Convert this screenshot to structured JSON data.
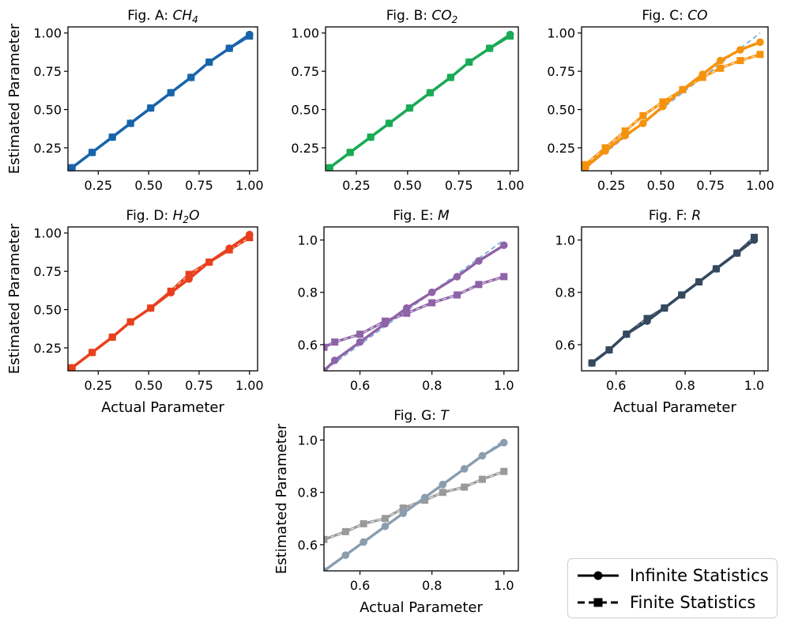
{
  "figure": {
    "ylabel": "Estimated Parameter",
    "xlabel": "Actual Parameter",
    "legend": {
      "infinite_label": "Infinite Statistics",
      "finite_label": "Finite Statistics"
    }
  },
  "chart_data": [
    {
      "id": "A",
      "type": "line",
      "title_prefix": "Fig. A: ",
      "title_sym": "CH",
      "title_sub": "4",
      "color": "#1764ab",
      "xlim": [
        0.1,
        1.04
      ],
      "ylim": [
        0.1,
        1.04
      ],
      "xticks": [
        "0.25",
        "0.50",
        "0.75",
        "1.00"
      ],
      "xtick_vals": [
        0.25,
        0.5,
        0.75,
        1.0
      ],
      "yticks": [
        "0.25",
        "0.50",
        "0.75",
        "1.00"
      ],
      "ytick_vals": [
        0.25,
        0.5,
        0.75,
        1.0
      ],
      "series": [
        {
          "name": "Infinite Statistics",
          "x": [
            0.12,
            0.22,
            0.32,
            0.41,
            0.51,
            0.61,
            0.71,
            0.8,
            0.9,
            1.0
          ],
          "y": [
            0.12,
            0.22,
            0.32,
            0.41,
            0.51,
            0.61,
            0.71,
            0.81,
            0.9,
            0.99
          ]
        },
        {
          "name": "Finite Statistics",
          "x": [
            0.12,
            0.22,
            0.32,
            0.41,
            0.51,
            0.61,
            0.71,
            0.8,
            0.9,
            1.0
          ],
          "y": [
            0.12,
            0.22,
            0.32,
            0.41,
            0.51,
            0.61,
            0.71,
            0.81,
            0.9,
            0.98
          ]
        }
      ]
    },
    {
      "id": "B",
      "type": "line",
      "title_prefix": "Fig. B: ",
      "title_sym": "CO",
      "title_sub": "2",
      "color": "#1aaa55",
      "xlim": [
        0.1,
        1.04
      ],
      "ylim": [
        0.1,
        1.04
      ],
      "xticks": [
        "0.25",
        "0.50",
        "0.75",
        "1.00"
      ],
      "xtick_vals": [
        0.25,
        0.5,
        0.75,
        1.0
      ],
      "yticks": [
        "0.25",
        "0.50",
        "0.75",
        "1.00"
      ],
      "ytick_vals": [
        0.25,
        0.5,
        0.75,
        1.0
      ],
      "series": [
        {
          "name": "Infinite Statistics",
          "x": [
            0.12,
            0.22,
            0.32,
            0.41,
            0.51,
            0.61,
            0.71,
            0.8,
            0.9,
            1.0
          ],
          "y": [
            0.12,
            0.22,
            0.32,
            0.41,
            0.51,
            0.61,
            0.71,
            0.81,
            0.9,
            0.99
          ]
        },
        {
          "name": "Finite Statistics",
          "x": [
            0.12,
            0.22,
            0.32,
            0.41,
            0.51,
            0.61,
            0.71,
            0.8,
            0.9,
            1.0
          ],
          "y": [
            0.12,
            0.22,
            0.32,
            0.41,
            0.51,
            0.61,
            0.71,
            0.81,
            0.9,
            0.98
          ]
        }
      ]
    },
    {
      "id": "C",
      "type": "line",
      "title_prefix": "Fig. C: ",
      "title_sym": "CO",
      "title_sub": "",
      "color": "#f5920c",
      "xlim": [
        0.1,
        1.04
      ],
      "ylim": [
        0.1,
        1.04
      ],
      "xticks": [
        "0.25",
        "0.50",
        "0.75",
        "1.00"
      ],
      "xtick_vals": [
        0.25,
        0.5,
        0.75,
        1.0
      ],
      "yticks": [
        "0.25",
        "0.50",
        "0.75",
        "1.00"
      ],
      "ytick_vals": [
        0.25,
        0.5,
        0.75,
        1.0
      ],
      "series": [
        {
          "name": "Infinite Statistics",
          "x": [
            0.12,
            0.22,
            0.32,
            0.41,
            0.51,
            0.61,
            0.71,
            0.8,
            0.9,
            1.0
          ],
          "y": [
            0.12,
            0.23,
            0.33,
            0.41,
            0.52,
            0.63,
            0.73,
            0.82,
            0.89,
            0.94
          ]
        },
        {
          "name": "Finite Statistics",
          "x": [
            0.12,
            0.22,
            0.32,
            0.41,
            0.51,
            0.61,
            0.71,
            0.8,
            0.9,
            1.0
          ],
          "y": [
            0.14,
            0.25,
            0.36,
            0.46,
            0.55,
            0.63,
            0.71,
            0.77,
            0.82,
            0.86
          ]
        }
      ],
      "reference_line": true
    },
    {
      "id": "D",
      "type": "line",
      "title_prefix": "Fig. D: ",
      "title_sym": "H",
      "title_sub": "2",
      "title_tail": "O",
      "color": "#e8401c",
      "xlim": [
        0.1,
        1.04
      ],
      "ylim": [
        0.1,
        1.04
      ],
      "xticks": [
        "0.25",
        "0.50",
        "0.75",
        "1.00"
      ],
      "xtick_vals": [
        0.25,
        0.5,
        0.75,
        1.0
      ],
      "yticks": [
        "0.25",
        "0.50",
        "0.75",
        "1.00"
      ],
      "ytick_vals": [
        0.25,
        0.5,
        0.75,
        1.0
      ],
      "series": [
        {
          "name": "Infinite Statistics",
          "x": [
            0.12,
            0.22,
            0.32,
            0.41,
            0.51,
            0.61,
            0.7,
            0.8,
            0.9,
            1.0
          ],
          "y": [
            0.12,
            0.22,
            0.32,
            0.42,
            0.51,
            0.61,
            0.7,
            0.81,
            0.9,
            0.99
          ]
        },
        {
          "name": "Finite Statistics",
          "x": [
            0.12,
            0.22,
            0.32,
            0.41,
            0.51,
            0.61,
            0.7,
            0.8,
            0.9,
            1.0
          ],
          "y": [
            0.12,
            0.22,
            0.32,
            0.42,
            0.51,
            0.62,
            0.73,
            0.81,
            0.89,
            0.97
          ]
        }
      ]
    },
    {
      "id": "E",
      "type": "line",
      "title_prefix": "Fig. E: ",
      "title_sym": "M",
      "title_sub": "",
      "color": "#8e63a8",
      "xlim": [
        0.5,
        1.04
      ],
      "ylim": [
        0.5,
        1.05
      ],
      "xticks": [
        "0.6",
        "0.8",
        "1.0"
      ],
      "xtick_vals": [
        0.6,
        0.8,
        1.0
      ],
      "yticks": [
        "0.6",
        "0.8",
        "1.0"
      ],
      "ytick_vals": [
        0.6,
        0.8,
        1.0
      ],
      "series": [
        {
          "name": "Infinite Statistics",
          "x": [
            0.5,
            0.53,
            0.6,
            0.67,
            0.73,
            0.8,
            0.87,
            0.93,
            1.0
          ],
          "y": [
            0.5,
            0.54,
            0.61,
            0.68,
            0.74,
            0.8,
            0.86,
            0.92,
            0.98
          ]
        },
        {
          "name": "Finite Statistics",
          "x": [
            0.5,
            0.53,
            0.6,
            0.67,
            0.73,
            0.8,
            0.87,
            0.93,
            1.0
          ],
          "y": [
            0.59,
            0.61,
            0.64,
            0.69,
            0.72,
            0.76,
            0.79,
            0.83,
            0.86
          ]
        }
      ],
      "reference_line": true
    },
    {
      "id": "F",
      "type": "line",
      "title_prefix": "Fig. F: ",
      "title_sym": "R",
      "title_sub": "",
      "color": "#34495e",
      "xlim": [
        0.5,
        1.04
      ],
      "ylim": [
        0.5,
        1.05
      ],
      "xticks": [
        "0.6",
        "0.8",
        "1.0"
      ],
      "xtick_vals": [
        0.6,
        0.8,
        1.0
      ],
      "yticks": [
        "0.6",
        "0.8",
        "1.0"
      ],
      "ytick_vals": [
        0.6,
        0.8,
        1.0
      ],
      "series": [
        {
          "name": "Infinite Statistics",
          "x": [
            0.53,
            0.58,
            0.63,
            0.69,
            0.74,
            0.79,
            0.84,
            0.89,
            0.95,
            1.0
          ],
          "y": [
            0.53,
            0.58,
            0.64,
            0.69,
            0.74,
            0.79,
            0.84,
            0.89,
            0.95,
            1.0
          ]
        },
        {
          "name": "Finite Statistics",
          "x": [
            0.53,
            0.58,
            0.63,
            0.69,
            0.74,
            0.79,
            0.84,
            0.89,
            0.95,
            1.0
          ],
          "y": [
            0.53,
            0.58,
            0.64,
            0.7,
            0.74,
            0.79,
            0.84,
            0.89,
            0.95,
            1.01
          ]
        }
      ]
    },
    {
      "id": "G",
      "type": "line",
      "title_prefix": "Fig. G: ",
      "title_sym": "T",
      "title_sub": "",
      "color": "#9a9a9a",
      "color_infinite": "#8a9daf",
      "xlim": [
        0.5,
        1.04
      ],
      "ylim": [
        0.5,
        1.05
      ],
      "xticks": [
        "0.6",
        "0.8",
        "1.0"
      ],
      "xtick_vals": [
        0.6,
        0.8,
        1.0
      ],
      "yticks": [
        "0.6",
        "0.8",
        "1.0"
      ],
      "ytick_vals": [
        0.6,
        0.8,
        1.0
      ],
      "series": [
        {
          "name": "Infinite Statistics",
          "x": [
            0.5,
            0.56,
            0.61,
            0.67,
            0.72,
            0.78,
            0.83,
            0.89,
            0.94,
            1.0
          ],
          "y": [
            0.5,
            0.56,
            0.61,
            0.67,
            0.72,
            0.78,
            0.83,
            0.89,
            0.94,
            0.99
          ]
        },
        {
          "name": "Finite Statistics",
          "x": [
            0.5,
            0.56,
            0.61,
            0.67,
            0.72,
            0.78,
            0.83,
            0.89,
            0.94,
            1.0
          ],
          "y": [
            0.62,
            0.65,
            0.68,
            0.7,
            0.74,
            0.77,
            0.8,
            0.82,
            0.85,
            0.88
          ]
        }
      ],
      "reference_line": true
    }
  ]
}
